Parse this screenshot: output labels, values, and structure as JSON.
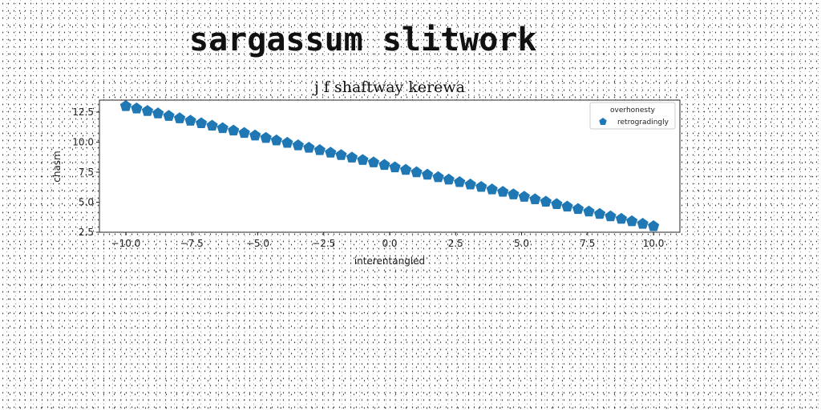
{
  "page_title": "sargassum slitwork",
  "chart_data": {
    "type": "scatter",
    "title": "j f shaftway kerewa",
    "xlabel": "interentangled",
    "ylabel": "chasm",
    "xlim": [
      -11,
      11
    ],
    "ylim": [
      2.5,
      13.5
    ],
    "xticks": [
      -10.0,
      -7.5,
      -5.0,
      -2.5,
      0.0,
      2.5,
      5.0,
      7.5,
      10.0
    ],
    "xtick_labels": [
      "−10.0",
      "−7.5",
      "−5.0",
      "−2.5",
      "0.0",
      "2.5",
      "5.0",
      "7.5",
      "10.0"
    ],
    "yticks": [
      2.5,
      5.0,
      7.5,
      10.0,
      12.5
    ],
    "ytick_labels": [
      "2.5",
      "5.0",
      "7.5",
      "10.0",
      "12.5"
    ],
    "grid": false,
    "legend": {
      "title": "overhonesty",
      "placement": "top-right",
      "entries": [
        "retrogradingly"
      ]
    },
    "series": [
      {
        "name": "retrogradingly",
        "marker": "pentagon",
        "color": "#1f77b4",
        "x_start": -10,
        "x_end": 10,
        "n_points": 50,
        "y_start": 13.0,
        "y_end": 3.0,
        "x": [
          -10.0,
          -9.59,
          -9.18,
          -8.78,
          -8.37,
          -7.96,
          -7.55,
          -7.14,
          -6.73,
          -6.33,
          -5.92,
          -5.51,
          -5.1,
          -4.69,
          -4.29,
          -3.88,
          -3.47,
          -3.06,
          -2.65,
          -2.24,
          -1.84,
          -1.43,
          -1.02,
          -0.61,
          -0.2,
          0.2,
          0.61,
          1.02,
          1.43,
          1.84,
          2.24,
          2.65,
          3.06,
          3.47,
          3.88,
          4.29,
          4.69,
          5.1,
          5.51,
          5.92,
          6.33,
          6.73,
          7.14,
          7.55,
          7.96,
          8.37,
          8.78,
          9.18,
          9.59,
          10.0
        ],
        "y": [
          13.0,
          12.8,
          12.59,
          12.39,
          12.18,
          11.98,
          11.78,
          11.57,
          11.37,
          11.16,
          10.96,
          10.76,
          10.55,
          10.35,
          10.14,
          9.94,
          9.73,
          9.53,
          9.33,
          9.12,
          8.92,
          8.71,
          8.51,
          8.31,
          8.1,
          7.9,
          7.69,
          7.49,
          7.29,
          7.08,
          6.88,
          6.67,
          6.47,
          6.27,
          6.06,
          5.86,
          5.65,
          5.45,
          5.24,
          5.04,
          4.84,
          4.63,
          4.43,
          4.22,
          4.02,
          3.82,
          3.61,
          3.41,
          3.2,
          3.0
        ]
      }
    ]
  }
}
